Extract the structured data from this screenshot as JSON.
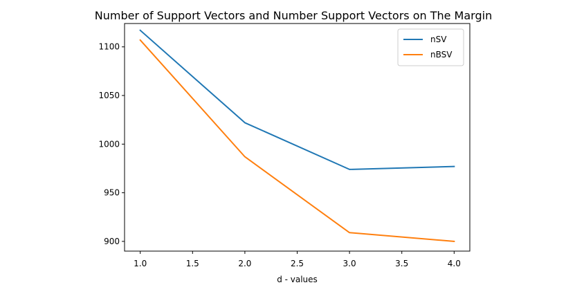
{
  "chart_data": {
    "type": "line",
    "title": "Number of Support Vectors and Number Support Vectors on The Margin",
    "xlabel": "d - values",
    "ylabel": "",
    "x": [
      1.0,
      2.0,
      3.0,
      4.0
    ],
    "xlim": [
      0.85,
      4.15
    ],
    "ylim": [
      890,
      1124
    ],
    "xticks": [
      1.0,
      1.5,
      2.0,
      2.5,
      3.0,
      3.5,
      4.0
    ],
    "xtick_labels": [
      "1.0",
      "1.5",
      "2.0",
      "2.5",
      "3.0",
      "3.5",
      "4.0"
    ],
    "yticks": [
      900,
      950,
      1000,
      1050,
      1100
    ],
    "ytick_labels": [
      "900",
      "950",
      "1000",
      "1050",
      "1100"
    ],
    "grid": false,
    "legend_position": "top-right",
    "series": [
      {
        "name": "nSV",
        "color": "#1f77b4",
        "values": [
          1117,
          1022,
          974,
          977
        ]
      },
      {
        "name": "nBSV",
        "color": "#ff7f0e",
        "values": [
          1107,
          987,
          909,
          900
        ]
      }
    ]
  }
}
